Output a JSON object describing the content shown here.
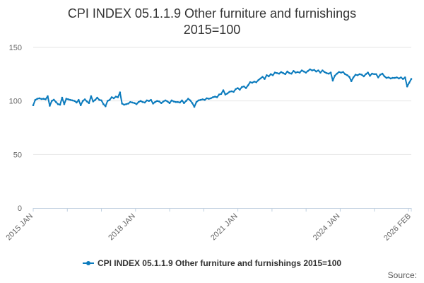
{
  "title_lines": [
    "CPI INDEX 05.1.1.9 Other furniture and furnishings",
    "2015=100"
  ],
  "source_label": "Source:",
  "colors": {
    "series": "#0b7bbd",
    "grid": "#e6e6e6",
    "axis": "#c0d0e0"
  },
  "chart_data": {
    "type": "line",
    "title": "CPI INDEX 05.1.1.9 Other furniture and furnishings 2015=100",
    "xlabel": "",
    "ylabel": "",
    "ylim": [
      0,
      150
    ],
    "yticks": [
      0,
      50,
      100,
      150
    ],
    "xticks": [
      "2015 JAN",
      "2018 JAN",
      "2021 JAN",
      "2024 JAN",
      "2026 FEB"
    ],
    "x_start": "2015 JAN",
    "x_end": "2026 FEB",
    "grid": true,
    "legend_position": "bottom",
    "series": [
      {
        "name": "CPI INDEX 05.1.1.9 Other furniture and furnishings 2015=100",
        "values": [
          96.0,
          101.0,
          102.0,
          102.5,
          101.8,
          102.0,
          101.5,
          104.5,
          95.5,
          100.0,
          101.2,
          99.0,
          97.0,
          96.5,
          103.0,
          97.0,
          102.0,
          101.5,
          101.0,
          100.5,
          100.0,
          98.5,
          101.0,
          96.0,
          100.0,
          101.5,
          99.5,
          98.0,
          104.5,
          99.5,
          101.0,
          103.0,
          101.0,
          100.5,
          97.0,
          95.0,
          100.0,
          101.0,
          103.5,
          102.5,
          104.0,
          103.5,
          108.0,
          97.5,
          96.5,
          97.0,
          97.5,
          99.0,
          98.5,
          98.0,
          97.0,
          99.0,
          100.0,
          99.0,
          98.5,
          100.5,
          100.0,
          101.0,
          97.5,
          99.0,
          100.0,
          99.5,
          98.0,
          99.5,
          100.5,
          99.5,
          98.0,
          100.5,
          99.5,
          99.0,
          99.0,
          98.5,
          100.5,
          98.0,
          100.0,
          102.0,
          100.5,
          98.0,
          94.5,
          99.0,
          100.5,
          101.0,
          101.5,
          101.0,
          102.5,
          102.0,
          102.5,
          103.5,
          104.0,
          103.5,
          106.0,
          106.5,
          110.0,
          106.0,
          107.0,
          108.5,
          109.0,
          108.5,
          111.0,
          112.0,
          110.5,
          113.0,
          113.5,
          112.0,
          114.5,
          117.5,
          117.0,
          118.0,
          117.5,
          119.5,
          121.0,
          122.5,
          120.5,
          124.0,
          123.0,
          125.0,
          124.0,
          126.5,
          126.0,
          125.5,
          127.0,
          126.0,
          125.0,
          127.5,
          126.0,
          125.5,
          128.0,
          126.5,
          127.0,
          126.5,
          128.5,
          127.5,
          126.5,
          128.0,
          129.5,
          128.5,
          129.0,
          127.5,
          128.5,
          126.5,
          128.5,
          127.0,
          126.0,
          125.5,
          126.5,
          119.0,
          123.5,
          125.5,
          127.0,
          126.5,
          127.0,
          125.0,
          124.0,
          122.5,
          118.5,
          122.0,
          124.5,
          124.0,
          125.0,
          124.5,
          123.0,
          125.0,
          126.5,
          123.5,
          125.5,
          125.0,
          125.0,
          122.0,
          124.5,
          125.5,
          123.0,
          121.5,
          122.0,
          121.0,
          121.5,
          121.5,
          122.0,
          121.0,
          122.0,
          120.5,
          122.0,
          113.5,
          117.0,
          120.5
        ]
      }
    ]
  }
}
